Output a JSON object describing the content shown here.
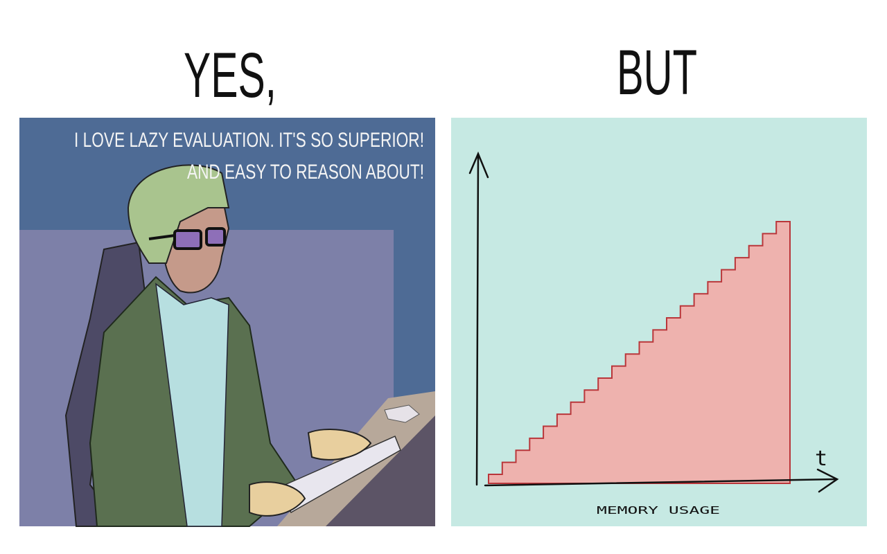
{
  "header": {
    "left": "YES,",
    "right": "BUT"
  },
  "left_panel": {
    "caption": [
      "I LOVE LAZY EVALUATION. IT'S SO SUPERIOR!",
      "AND EASY TO REASON ABOUT!"
    ]
  },
  "right_panel": {
    "x_axis_symbol": "t",
    "x_axis_label": "MEMORY USAGE"
  }
}
